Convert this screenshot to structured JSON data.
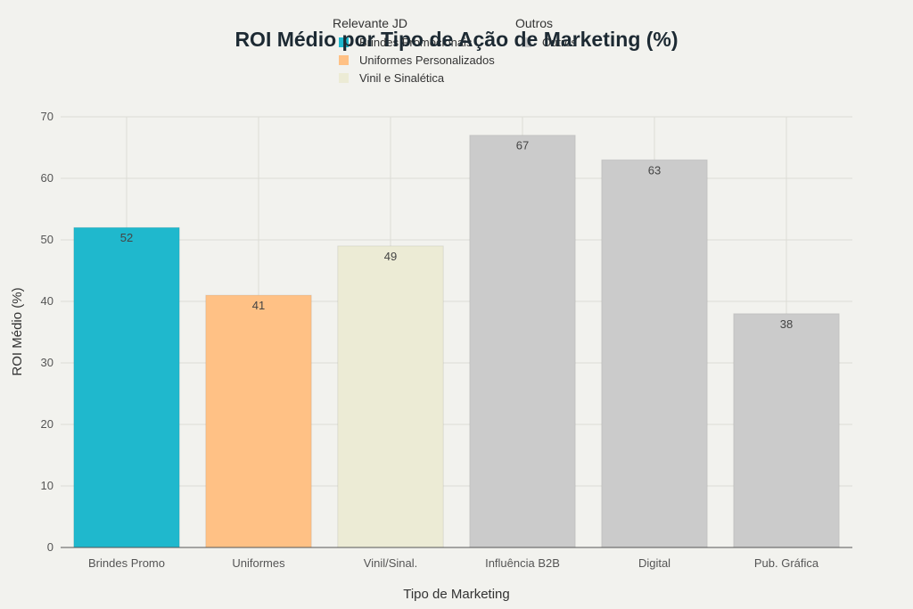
{
  "chart_data": {
    "type": "bar",
    "title": "ROI Médio por Tipo de Ação de Marketing (%)",
    "xlabel": "Tipo de Marketing",
    "ylabel": "ROI Médio (%)",
    "ylim": [
      0,
      70
    ],
    "yticks": [
      0,
      10,
      20,
      30,
      40,
      50,
      60,
      70
    ],
    "grid": true,
    "legend_position": "top",
    "categories": [
      "Brindes Promo",
      "Uniformes",
      "Vinil/Sinal.",
      "Influência B2B",
      "Digital",
      "Pub. Gráfica"
    ],
    "values": [
      52,
      41,
      49,
      67,
      63,
      38
    ],
    "data_labels": [
      "52",
      "41",
      "49",
      "67",
      "63",
      "38"
    ],
    "bar_colors": [
      "#1fb8cd",
      "#ffc185",
      "#ecebd5",
      "#cbcbcb",
      "#cbcbcb",
      "#cbcbcb"
    ],
    "legend": {
      "groups": [
        {
          "title": "Relevante JD",
          "items": [
            {
              "label": "Brindes Promocionais",
              "color": "#1fb8cd"
            },
            {
              "label": "Uniformes Personalizados",
              "color": "#ffc185"
            },
            {
              "label": "Vinil e Sinalética",
              "color": "#ecebd5"
            }
          ]
        },
        {
          "title": "Outros",
          "items": [
            {
              "label": "Outros",
              "color": "#cbcbcb"
            }
          ]
        }
      ]
    }
  }
}
